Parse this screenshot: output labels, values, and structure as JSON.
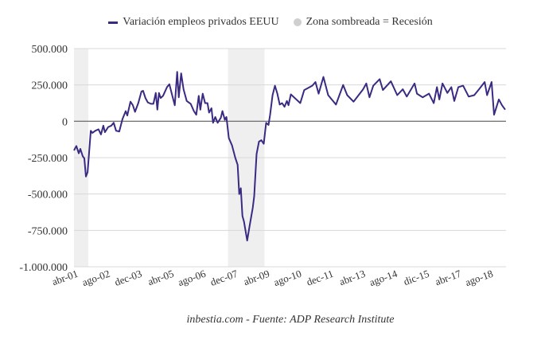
{
  "chart_data": {
    "type": "line",
    "title": "",
    "xlabel": "",
    "ylabel": "",
    "x_unit": "months since abr-01",
    "xlim": [
      0,
      216.5
    ],
    "ylim": [
      -1000000,
      500000
    ],
    "grid": true,
    "legend_placement": "top-center",
    "y_ticks": [
      500000,
      250000,
      0,
      -250000,
      -500000,
      -750000,
      -1000000
    ],
    "y_tick_labels": [
      "500.000",
      "250.000",
      "0",
      "-250.000",
      "-500.000",
      "-750.000",
      "-1.000.000"
    ],
    "x_ticks": [
      0,
      16,
      32,
      48,
      64,
      80,
      96,
      112,
      128,
      144,
      160,
      176,
      192,
      208
    ],
    "x_tick_labels": [
      "abr-01",
      "ago-02",
      "dec-03",
      "abr-05",
      "ago-06",
      "dec-07",
      "abr-09",
      "ago-10",
      "dec-11",
      "abr-13",
      "ago-14",
      "dic-15",
      "abr-17",
      "ago-18"
    ],
    "recessions": [
      [
        0,
        7.2
      ],
      [
        77.2,
        95.5
      ]
    ],
    "series": [
      {
        "name": "Variación empleos privados EEUU",
        "color": "#3a2a82",
        "x": [
          0,
          1.2,
          2.4,
          3.2,
          4.4,
          5.2,
          6,
          6.8,
          8.4,
          9.2,
          10.7,
          12.3,
          13.5,
          14.7,
          15.5,
          17.1,
          18.7,
          19.9,
          21.1,
          22.7,
          24.3,
          25.9,
          26.7,
          28.3,
          29.5,
          30.6,
          32.2,
          33.8,
          34.6,
          35.8,
          37,
          38.6,
          39.8,
          41,
          41.8,
          42.6,
          43.4,
          44.6,
          46.6,
          47.8,
          49,
          50.5,
          51.7,
          52.5,
          53.7,
          54.9,
          56.5,
          58.5,
          60.1,
          61.3,
          62.5,
          63.3,
          64.5,
          65.7,
          66.9,
          67.7,
          68.9,
          69.7,
          70.8,
          72,
          73.6,
          74.4,
          75.6,
          76.4,
          77.6,
          79.2,
          80.8,
          82,
          82.8,
          83.6,
          84.4,
          85.2,
          86.8,
          88,
          89.6,
          90.3,
          91.5,
          92.7,
          93.9,
          95.1,
          96.3,
          97.5,
          98.3,
          99.5,
          100.7,
          101.9,
          103.1,
          104.3,
          105.5,
          106.7,
          107.5,
          108.7,
          113.4,
          115.4,
          119.4,
          121,
          122.6,
          125,
          127.4,
          131.3,
          134.9,
          136.9,
          140.1,
          144.9,
          146.5,
          148.1,
          150,
          153.2,
          154.8,
          156.8,
          158.8,
          162,
          164.8,
          166.8,
          170.7,
          171.9,
          174.7,
          177.9,
          180.3,
          181.9,
          183.1,
          184.7,
          187.1,
          189.1,
          190.6,
          192.6,
          195,
          197.8,
          200.6,
          203,
          205.8,
          207,
          209.3,
          210.5,
          212.9,
          214.5,
          216.1
        ],
        "y": [
          -200000,
          -170000,
          -220000,
          -190000,
          -240000,
          -255000,
          -380000,
          -350000,
          -65000,
          -80000,
          -65000,
          -55000,
          -90000,
          -30000,
          -75000,
          -40000,
          -30000,
          -10000,
          -65000,
          -70000,
          15000,
          70000,
          40000,
          135000,
          110000,
          65000,
          125000,
          205000,
          210000,
          160000,
          130000,
          120000,
          120000,
          195000,
          80000,
          195000,
          160000,
          175000,
          235000,
          255000,
          190000,
          110000,
          340000,
          165000,
          330000,
          220000,
          140000,
          120000,
          70000,
          45000,
          175000,
          80000,
          190000,
          125000,
          125000,
          60000,
          90000,
          -10000,
          30000,
          -10000,
          25000,
          70000,
          10000,
          30000,
          -115000,
          -165000,
          -250000,
          -300000,
          -500000,
          -460000,
          -650000,
          -690000,
          -820000,
          -720000,
          -595000,
          -515000,
          -225000,
          -140000,
          -130000,
          -155000,
          -10000,
          -25000,
          45000,
          180000,
          245000,
          190000,
          115000,
          125000,
          100000,
          140000,
          110000,
          185000,
          125000,
          215000,
          245000,
          270000,
          190000,
          305000,
          180000,
          115000,
          250000,
          180000,
          135000,
          220000,
          260000,
          165000,
          245000,
          290000,
          215000,
          245000,
          275000,
          180000,
          220000,
          170000,
          260000,
          190000,
          165000,
          190000,
          125000,
          235000,
          150000,
          260000,
          195000,
          235000,
          140000,
          235000,
          245000,
          170000,
          180000,
          220000,
          270000,
          180000,
          270000,
          45000,
          150000,
          110000,
          80000
        ]
      }
    ],
    "legend": [
      "Variación empleos privados EEUU",
      "Zona sombreada = Recesión"
    ],
    "recession_color": "#efefef",
    "source": "inbestia.com - Fuente: ADP Research Institute"
  }
}
